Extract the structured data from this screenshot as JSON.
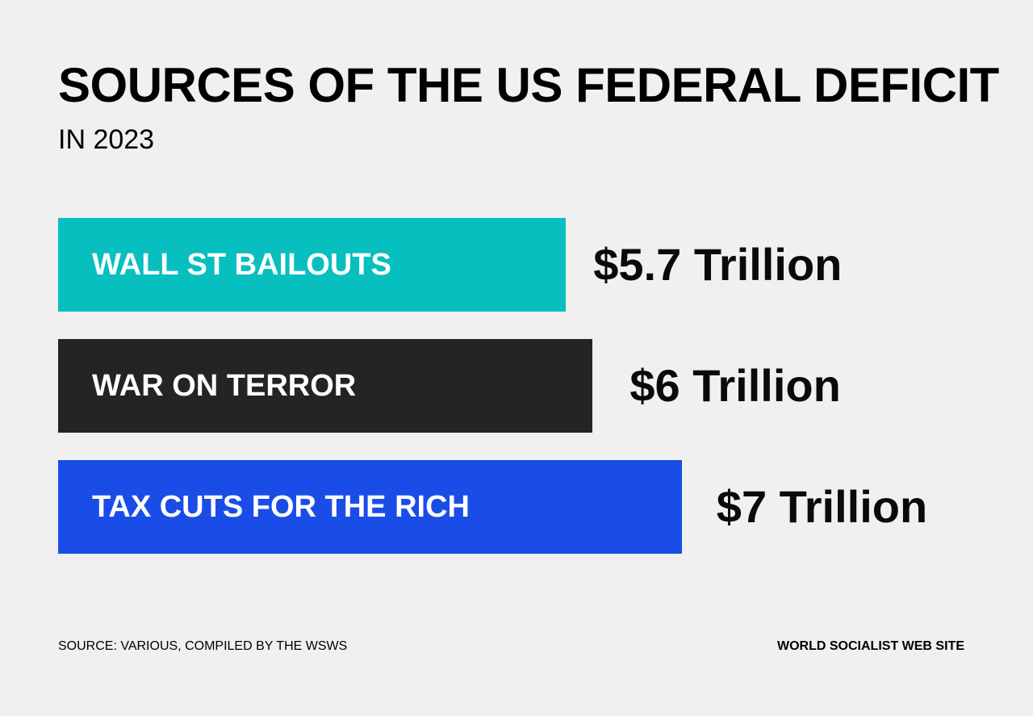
{
  "chart_data": {
    "type": "bar",
    "orientation": "horizontal",
    "title": "SOURCES OF THE US FEDERAL DEFICIT",
    "subtitle": "IN 2023",
    "categories": [
      "WALL ST BAILOUTS",
      "WAR ON TERROR",
      "TAX CUTS FOR THE RICH"
    ],
    "values": [
      5.7,
      6,
      7
    ],
    "value_labels": [
      "$5.7 Trillion",
      "$6 Trillion",
      "$7 Trillion"
    ],
    "colors": [
      "#08bfc0",
      "#242424",
      "#1a4de8"
    ],
    "grid": false
  },
  "footer": {
    "source": "SOURCE: VARIOUS, COMPILED BY THE WSWS",
    "credit": "WORLD SOCIALIST WEB SITE"
  }
}
